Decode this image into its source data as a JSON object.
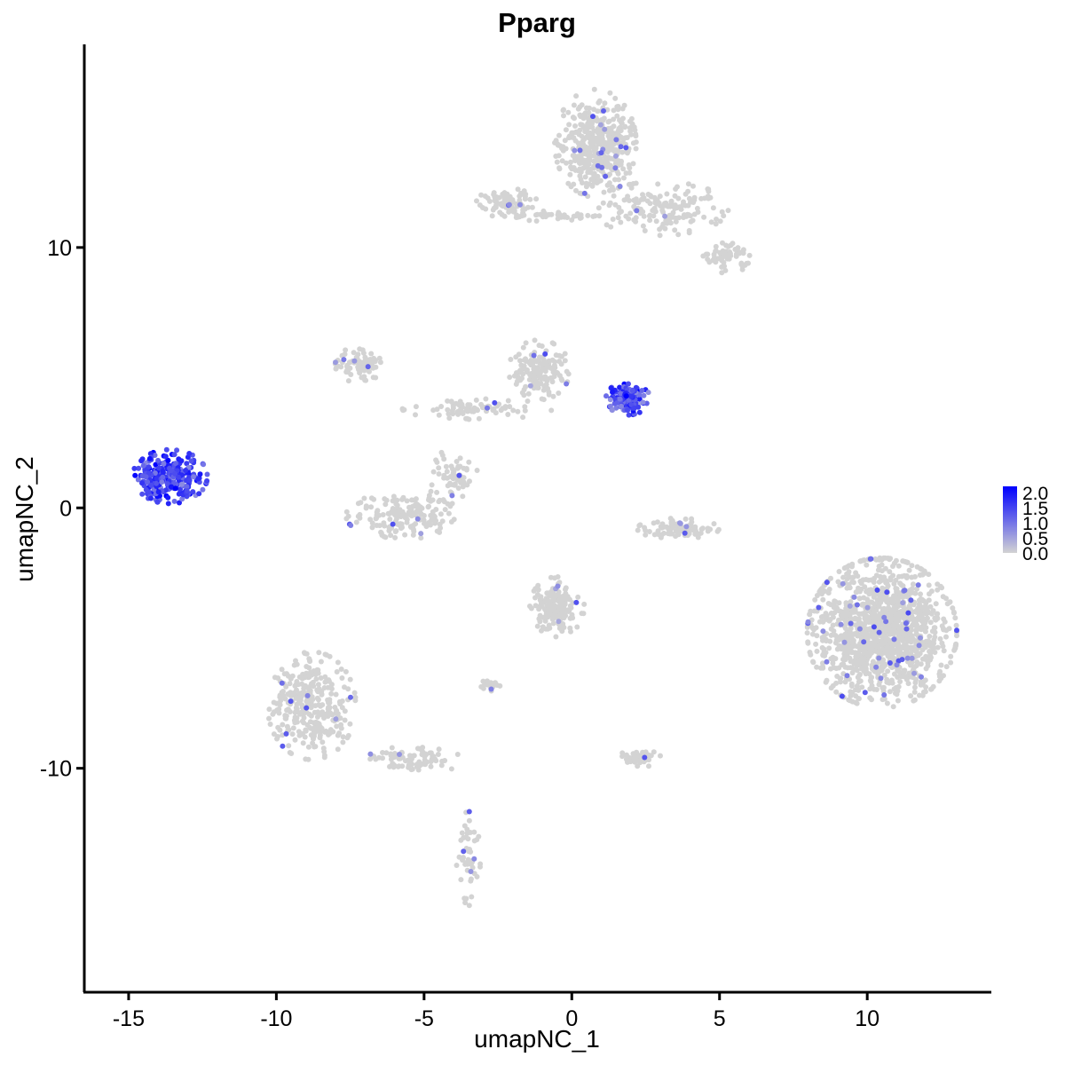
{
  "chart_data": {
    "type": "scatter",
    "title": "Pparg",
    "xlabel": "umapNC_1",
    "ylabel": "umapNC_2",
    "xlim": [
      -16.5,
      14.2
    ],
    "ylim": [
      -18.6,
      17.8
    ],
    "xticks": [
      -15,
      -10,
      -5,
      0,
      5,
      10
    ],
    "xtick_labels": [
      "-15",
      "-10",
      "-5",
      "0",
      "5",
      "10"
    ],
    "yticks": [
      -10,
      0,
      10
    ],
    "ytick_labels": [
      "-10",
      "0",
      "10"
    ],
    "grid": false,
    "legend": {
      "placement": "right",
      "type": "colorbar",
      "range": [
        0,
        2.0
      ],
      "labels": [
        "2.0",
        "1.5",
        "1.0",
        "0.5",
        "0.0"
      ],
      "low_color": "#d3d3d3",
      "high_color": "#0000ff"
    },
    "background_color": "#d3d3d3",
    "clusters": [
      {
        "name": "top-right",
        "cx": 0.8,
        "cy": 14.0,
        "rx": 1.2,
        "ry": 1.8,
        "n": 420
      },
      {
        "name": "top-right-arm",
        "cx": 3.0,
        "cy": 11.5,
        "rx": 2.0,
        "ry": 0.9,
        "n": 170
      },
      {
        "name": "top-right-tail",
        "cx": 5.2,
        "cy": 9.6,
        "rx": 0.8,
        "ry": 0.5,
        "n": 60
      },
      {
        "name": "top-left-bar",
        "cx": -2.2,
        "cy": 11.7,
        "rx": 0.9,
        "ry": 0.5,
        "n": 90
      },
      {
        "name": "top-bridge",
        "cx": -0.5,
        "cy": 11.2,
        "rx": 1.3,
        "ry": 0.18,
        "n": 40
      },
      {
        "name": "mid-left-loop",
        "cx": -7.2,
        "cy": 5.5,
        "rx": 0.7,
        "ry": 0.6,
        "n": 80
      },
      {
        "name": "mid-cluster",
        "cx": -1.1,
        "cy": 5.3,
        "rx": 0.9,
        "ry": 1.0,
        "n": 150
      },
      {
        "name": "mid-branch",
        "cx": -3.2,
        "cy": 3.8,
        "rx": 2.2,
        "ry": 0.35,
        "n": 80
      },
      {
        "name": "mid-left-arc",
        "cx": -5.8,
        "cy": -0.3,
        "rx": 1.6,
        "ry": 0.8,
        "n": 170
      },
      {
        "name": "mid-left-arc-up",
        "cx": -4.0,
        "cy": 1.2,
        "rx": 0.8,
        "ry": 0.9,
        "n": 60
      },
      {
        "name": "small-right-arc",
        "cx": 3.6,
        "cy": -0.8,
        "rx": 1.2,
        "ry": 0.35,
        "n": 90
      },
      {
        "name": "center-lower",
        "cx": -0.5,
        "cy": -3.8,
        "rx": 0.8,
        "ry": 1.0,
        "n": 160
      },
      {
        "name": "large-right",
        "cx": 10.5,
        "cy": -4.8,
        "rx": 2.2,
        "ry": 2.5,
        "n": 1300
      },
      {
        "name": "bottom-left",
        "cx": -8.8,
        "cy": -7.6,
        "rx": 1.3,
        "ry": 1.8,
        "n": 320
      },
      {
        "name": "bottom-left-stream",
        "cx": -5.5,
        "cy": -9.7,
        "rx": 1.6,
        "ry": 0.45,
        "n": 80
      },
      {
        "name": "bottom-stalk",
        "cx": -3.5,
        "cy": -13.5,
        "rx": 0.35,
        "ry": 1.6,
        "n": 50
      },
      {
        "name": "small-bottom-right",
        "cx": 2.3,
        "cy": -9.6,
        "rx": 0.7,
        "ry": 0.3,
        "n": 40
      },
      {
        "name": "small-bottom-left",
        "cx": -2.7,
        "cy": -6.8,
        "rx": 0.4,
        "ry": 0.2,
        "n": 20
      },
      {
        "name": "pparg-high-left",
        "cx": -13.6,
        "cy": 1.2,
        "rx": 1.1,
        "ry": 0.9,
        "n": 280,
        "expression": 1.35
      },
      {
        "name": "pparg-high-mid",
        "cx": 1.9,
        "cy": 4.2,
        "rx": 0.65,
        "ry": 0.55,
        "n": 130,
        "expression": 1.3
      }
    ]
  }
}
